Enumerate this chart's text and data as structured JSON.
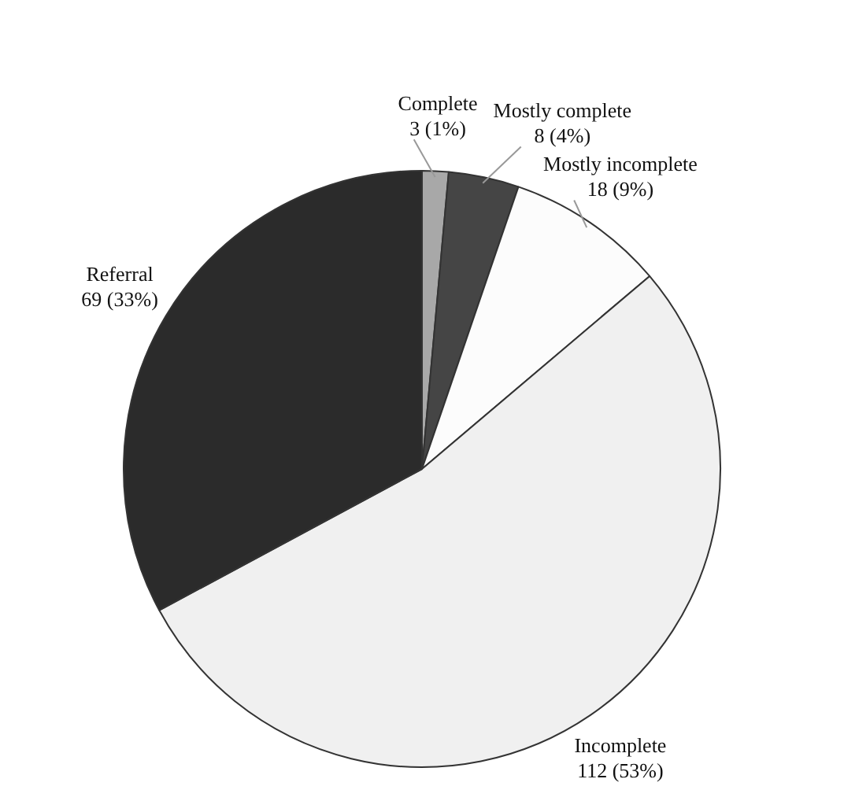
{
  "chart_data": {
    "type": "pie",
    "categories": [
      "Complete",
      "Mostly complete",
      "Mostly incomplete",
      "Incomplete",
      "Referral"
    ],
    "values": [
      3,
      8,
      18,
      112,
      69
    ],
    "value_labels": [
      "3 (1%)",
      "8 (4%)",
      "18 (9%)",
      "112 (53%)",
      "69 (33%)"
    ],
    "colors": [
      "#a8a8a8",
      "#454545",
      "#fcfcfc",
      "#f0f0f0",
      "#2b2b2b"
    ],
    "legend": false
  }
}
